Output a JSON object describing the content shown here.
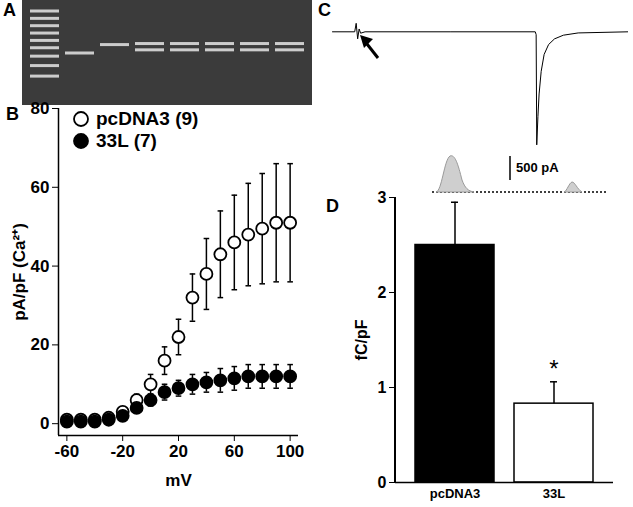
{
  "chart_data": [
    {
      "type": "gel",
      "title": "A",
      "lanes": [
        [
          10,
          17,
          24,
          31,
          38,
          45,
          53,
          62,
          72
        ],
        [
          50
        ],
        [
          42
        ],
        [
          41,
          47
        ],
        [
          41,
          47
        ],
        [
          41,
          47
        ],
        [
          41,
          47
        ],
        [
          41,
          47
        ]
      ],
      "ylim": [
        0,
        100
      ],
      "color": "#e6e6e6",
      "tick_labels": false
    },
    {
      "type": "scatter",
      "title": "B",
      "x": [
        -60,
        -50,
        -40,
        -30,
        -20,
        -10,
        0,
        10,
        20,
        30,
        40,
        50,
        60,
        70,
        80,
        90,
        100
      ],
      "series": [
        {
          "name": "pcDNA3 (9)",
          "color": "#000000",
          "marker": "open-circle",
          "values": [
            1,
            1,
            1,
            1.5,
            3,
            6,
            10,
            16,
            22,
            32,
            38,
            43,
            46,
            48,
            49.5,
            51,
            51
          ],
          "errors": [
            0.5,
            0.5,
            0.5,
            0.6,
            1,
            1.5,
            2.5,
            3.5,
            4.5,
            6,
            9,
            11,
            12,
            13,
            14,
            15,
            15
          ]
        },
        {
          "name": "33L (7)",
          "color": "#000000",
          "marker": "filled-circle",
          "values": [
            0.5,
            0.5,
            0.5,
            1,
            2,
            4,
            6,
            8,
            9,
            10,
            10.5,
            11,
            11.5,
            12,
            12,
            12,
            12
          ],
          "errors": [
            0.3,
            0.3,
            0.3,
            0.4,
            0.6,
            1,
            1.5,
            2,
            2,
            2.5,
            2.5,
            3,
            3,
            3,
            3,
            3,
            3
          ]
        }
      ],
      "xlabel": "mV",
      "ylabel": "pA/pF (Ca²⁺)",
      "xlim": [
        -66,
        106
      ],
      "ylim": [
        -3,
        80
      ],
      "xticks": [
        -60,
        -20,
        20,
        60,
        100
      ],
      "yticks": [
        0,
        20,
        40,
        60,
        80
      ],
      "legend": "top-left"
    },
    {
      "type": "line",
      "title": "C",
      "x": [
        0,
        7.5,
        8,
        8.5,
        9,
        9.5,
        11,
        40,
        68.5,
        68.8,
        69,
        69.4,
        69.8,
        70.5,
        71.5,
        73,
        75,
        78,
        83,
        100
      ],
      "values": [
        0,
        0,
        3,
        -2.5,
        1,
        -0.5,
        0,
        0,
        0,
        -1,
        -40,
        -30,
        -22,
        -14,
        -8,
        -4.5,
        -2.5,
        -1.2,
        -0.4,
        0
      ],
      "color": "#000000",
      "xlim": [
        0,
        100
      ],
      "ylim": [
        -42,
        4
      ],
      "xticks": [],
      "yticks": [],
      "tick_labels": false
    },
    {
      "type": "bar",
      "title": "D",
      "categories": [
        "pcDNA3",
        "33L"
      ],
      "values": [
        2.5,
        0.83
      ],
      "errors": [
        0.45,
        0.23
      ],
      "colors": [
        "#000000",
        "#ffffff"
      ],
      "ylabel": "fC/pF",
      "ylim": [
        0,
        3
      ],
      "yticks": [
        0,
        1,
        2,
        3
      ],
      "annotations": [
        {
          "category": "33L",
          "text": "*"
        }
      ],
      "inset": {
        "scale_bar": "500 pA"
      }
    }
  ]
}
